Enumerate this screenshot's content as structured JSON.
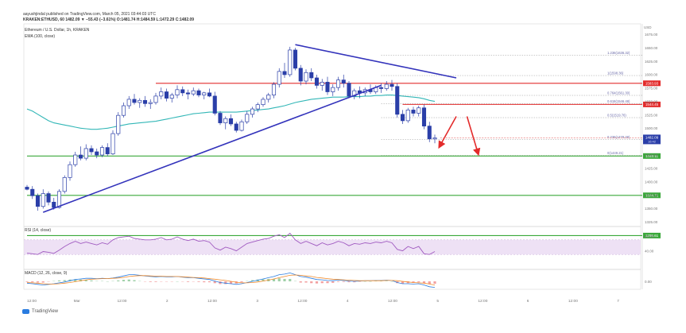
{
  "header": {
    "publish_line": "aayushjindal published on TradingView.com, March 05, 2021 03:44:03 UTC",
    "ohlc_line": "KRAKEN:ETHUSD, 60 1482.09 ▼ −55.43 (−3.61%) O:1481.74 H:1484.59 L:1472.29 C:1482.09",
    "instrument": "Ethereum / U.S. Dollar, 1h, KRAKEN",
    "ema_label": "EMA (100, close)"
  },
  "colors": {
    "candle": "#2a3ea8",
    "ema": "#33b7b7",
    "trendline": "#3333bb",
    "resistance": "#e32b2b",
    "support": "#3aa83a",
    "fib": "#999999",
    "rsi": "#a05ac0",
    "rsi_band": "#ead9f2",
    "macd": "#2a7ce0",
    "signal": "#f08a2a",
    "hist_red": "#f2a0a0",
    "hist_green": "#9fd0a8",
    "arrow": "#e32b2b"
  },
  "chart_data": {
    "type": "candlestick",
    "title": "Ethereum / U.S. Dollar, 1h, KRAKEN",
    "price_scale": {
      "corner": "USD",
      "ticks": [
        1675,
        1650,
        1625,
        1600,
        1575,
        1550,
        1525,
        1500,
        1475,
        1450,
        1425,
        1400,
        1375,
        1350,
        1325
      ],
      "ylim": [
        1318,
        1683
      ]
    },
    "time_axis": [
      "12:00",
      "Mar",
      "12:00",
      "2",
      "12:00",
      "3",
      "12:00",
      "4",
      "12:00",
      "5",
      "12:00",
      "6",
      "12:00",
      "7"
    ],
    "candles": [
      [
        1390,
        1394,
        1384,
        1386
      ],
      [
        1386,
        1392,
        1368,
        1374
      ],
      [
        1374,
        1378,
        1346,
        1354
      ],
      [
        1354,
        1386,
        1350,
        1378
      ],
      [
        1378,
        1382,
        1356,
        1362
      ],
      [
        1362,
        1370,
        1348,
        1352
      ],
      [
        1352,
        1386,
        1350,
        1382
      ],
      [
        1382,
        1412,
        1378,
        1408
      ],
      [
        1408,
        1438,
        1402,
        1432
      ],
      [
        1432,
        1456,
        1428,
        1450
      ],
      [
        1450,
        1466,
        1440,
        1444
      ],
      [
        1444,
        1470,
        1440,
        1462
      ],
      [
        1462,
        1468,
        1450,
        1456
      ],
      [
        1456,
        1462,
        1444,
        1450
      ],
      [
        1450,
        1468,
        1446,
        1464
      ],
      [
        1464,
        1472,
        1448,
        1452
      ],
      [
        1452,
        1496,
        1450,
        1490
      ],
      [
        1490,
        1530,
        1486,
        1524
      ],
      [
        1524,
        1548,
        1520,
        1542
      ],
      [
        1542,
        1560,
        1536,
        1554
      ],
      [
        1554,
        1564,
        1544,
        1548
      ],
      [
        1548,
        1556,
        1538,
        1552
      ],
      [
        1552,
        1560,
        1540,
        1546
      ],
      [
        1546,
        1554,
        1536,
        1548
      ],
      [
        1548,
        1566,
        1544,
        1560
      ],
      [
        1560,
        1576,
        1554,
        1568
      ],
      [
        1568,
        1574,
        1550,
        1556
      ],
      [
        1556,
        1566,
        1548,
        1562
      ],
      [
        1562,
        1580,
        1556,
        1572
      ],
      [
        1572,
        1578,
        1560,
        1566
      ],
      [
        1566,
        1572,
        1554,
        1564
      ],
      [
        1564,
        1576,
        1560,
        1570
      ],
      [
        1570,
        1574,
        1558,
        1562
      ],
      [
        1562,
        1568,
        1554,
        1566
      ],
      [
        1566,
        1574,
        1558,
        1560
      ],
      [
        1560,
        1568,
        1524,
        1528
      ],
      [
        1528,
        1532,
        1506,
        1510
      ],
      [
        1510,
        1522,
        1498,
        1518
      ],
      [
        1518,
        1526,
        1504,
        1508
      ],
      [
        1508,
        1512,
        1492,
        1496
      ],
      [
        1496,
        1516,
        1494,
        1512
      ],
      [
        1512,
        1532,
        1508,
        1526
      ],
      [
        1526,
        1540,
        1520,
        1536
      ],
      [
        1536,
        1548,
        1530,
        1544
      ],
      [
        1544,
        1558,
        1540,
        1554
      ],
      [
        1554,
        1566,
        1548,
        1562
      ],
      [
        1562,
        1586,
        1556,
        1582
      ],
      [
        1582,
        1612,
        1576,
        1606
      ],
      [
        1606,
        1622,
        1594,
        1600
      ],
      [
        1600,
        1652,
        1596,
        1646
      ],
      [
        1646,
        1650,
        1608,
        1612
      ],
      [
        1612,
        1618,
        1580,
        1588
      ],
      [
        1588,
        1610,
        1582,
        1604
      ],
      [
        1604,
        1612,
        1588,
        1594
      ],
      [
        1594,
        1600,
        1574,
        1580
      ],
      [
        1580,
        1592,
        1570,
        1586
      ],
      [
        1586,
        1596,
        1562,
        1568
      ],
      [
        1568,
        1582,
        1560,
        1576
      ],
      [
        1576,
        1596,
        1570,
        1590
      ],
      [
        1590,
        1600,
        1576,
        1584
      ],
      [
        1584,
        1588,
        1556,
        1560
      ],
      [
        1560,
        1574,
        1554,
        1570
      ],
      [
        1570,
        1578,
        1556,
        1566
      ],
      [
        1566,
        1576,
        1560,
        1572
      ],
      [
        1572,
        1582,
        1564,
        1568
      ],
      [
        1568,
        1580,
        1564,
        1576
      ],
      [
        1576,
        1584,
        1566,
        1574
      ],
      [
        1574,
        1588,
        1570,
        1582
      ],
      [
        1582,
        1590,
        1570,
        1578
      ],
      [
        1578,
        1584,
        1520,
        1526
      ],
      [
        1526,
        1534,
        1508,
        1514
      ],
      [
        1514,
        1538,
        1510,
        1534
      ],
      [
        1534,
        1540,
        1522,
        1528
      ],
      [
        1528,
        1542,
        1522,
        1538
      ],
      [
        1538,
        1544,
        1498,
        1504
      ],
      [
        1504,
        1512,
        1474,
        1480
      ],
      [
        1480,
        1488,
        1472,
        1482
      ]
    ],
    "ema_100": [
      1536,
      1532,
      1526,
      1520,
      1514,
      1510,
      1508,
      1506,
      1504,
      1502,
      1500,
      1499,
      1498,
      1498,
      1499,
      1500,
      1502,
      1504,
      1506,
      1508,
      1509,
      1510,
      1511,
      1512,
      1513,
      1515,
      1517,
      1519,
      1521,
      1523,
      1525,
      1527,
      1528,
      1529,
      1530,
      1530,
      1530,
      1530,
      1530,
      1530,
      1531,
      1532,
      1533,
      1534,
      1535,
      1536,
      1538,
      1540,
      1542,
      1545,
      1548,
      1550,
      1552,
      1554,
      1555,
      1556,
      1557,
      1558,
      1558,
      1558,
      1559,
      1559,
      1559,
      1560,
      1560,
      1561,
      1561,
      1562,
      1562,
      1561,
      1560,
      1559,
      1558,
      1557,
      1555,
      1552,
      1550
    ],
    "trendlines": [
      {
        "name": "bullish trend line",
        "from": [
          3,
          1343
        ],
        "to": [
          66,
          1580
        ]
      },
      {
        "name": "bearish trend line",
        "from": [
          50,
          1656
        ],
        "to": [
          80,
          1594
        ]
      }
    ],
    "levels": [
      {
        "value": 1583.93,
        "label": "1583.93",
        "role": "resistance",
        "from": 24
      },
      {
        "value": 1544.45,
        "label": "1544.45",
        "role": "resistance",
        "from": 70
      },
      {
        "value": 1448.11,
        "label": "1448.11",
        "role": "support",
        "from": 0
      },
      {
        "value": 1374.71,
        "label": "1374.71",
        "role": "support",
        "from": 0
      },
      {
        "value": 1299.61,
        "label": "1299.61",
        "role": "support",
        "from": 0
      }
    ],
    "fib_levels": [
      {
        "value": 1636,
        "label": "1.236(1636.32)"
      },
      {
        "value": 1598.36,
        "label": "1(1598.36)"
      },
      {
        "value": 1561.3,
        "label": "0.764(1561.30)"
      },
      {
        "value": 1546,
        "label": "0.618(1546.48)"
      },
      {
        "value": 1519.76,
        "label": "0.5(1519.76)"
      },
      {
        "value": 1479.29,
        "label": "0.236(1479.29)"
      },
      {
        "value": 1449.21,
        "label": "0(1449.21)"
      }
    ],
    "price_badges": [
      {
        "value": 1482.09,
        "label": "1482.09",
        "sub": "16:42"
      }
    ],
    "arrows": [
      {
        "from": [
          80,
          1522
        ],
        "to": [
          77,
          1468
        ]
      },
      {
        "from": [
          82,
          1522
        ],
        "to": [
          84,
          1455
        ]
      }
    ],
    "rsi": {
      "label": "RSI (14, close)",
      "ticks": [
        80,
        40
      ],
      "band": [
        30,
        70
      ],
      "values": [
        34,
        32,
        30,
        38,
        36,
        33,
        42,
        52,
        60,
        66,
        60,
        64,
        60,
        56,
        62,
        58,
        70,
        76,
        78,
        80,
        74,
        72,
        70,
        70,
        72,
        76,
        70,
        72,
        78,
        72,
        68,
        72,
        66,
        68,
        64,
        48,
        42,
        50,
        46,
        40,
        50,
        60,
        64,
        68,
        72,
        74,
        80,
        84,
        76,
        88,
        70,
        60,
        66,
        60,
        54,
        62,
        56,
        60,
        66,
        62,
        54,
        60,
        58,
        62,
        60,
        64,
        62,
        66,
        62,
        44,
        40,
        52,
        46,
        52,
        32,
        30,
        38
      ]
    },
    "macd": {
      "label": "MACD (12, 26, close, 9)",
      "ticks": [
        "0.00"
      ],
      "macd": [
        -6,
        -8,
        -10,
        -12,
        -10,
        -8,
        -5,
        -2,
        2,
        6,
        8,
        10,
        10,
        9,
        10,
        9,
        11,
        14,
        18,
        22,
        22,
        20,
        18,
        16,
        15,
        16,
        15,
        15,
        16,
        14,
        12,
        12,
        10,
        8,
        6,
        1,
        -4,
        -6,
        -8,
        -10,
        -8,
        -4,
        0,
        4,
        8,
        12,
        16,
        22,
        24,
        28,
        22,
        16,
        14,
        10,
        6,
        5,
        3,
        2,
        4,
        3,
        1,
        0,
        1,
        2,
        2,
        3,
        3,
        4,
        3,
        -4,
        -8,
        -8,
        -9,
        -8,
        -12,
        -18,
        -20
      ],
      "signal": [
        -4,
        -5,
        -6,
        -8,
        -9,
        -9,
        -8,
        -6,
        -4,
        -1,
        2,
        5,
        7,
        8,
        9,
        9,
        10,
        11,
        13,
        16,
        18,
        19,
        19,
        18,
        17,
        17,
        16,
        16,
        16,
        15,
        14,
        13,
        12,
        11,
        9,
        7,
        5,
        3,
        0,
        -3,
        -5,
        -5,
        -4,
        -2,
        1,
        4,
        8,
        12,
        16,
        20,
        21,
        20,
        18,
        16,
        13,
        11,
        9,
        7,
        6,
        5,
        4,
        3,
        2,
        2,
        2,
        2,
        2,
        3,
        3,
        2,
        0,
        -2,
        -4,
        -5,
        -6,
        -9,
        -12
      ]
    }
  },
  "watermark": "TradingView"
}
